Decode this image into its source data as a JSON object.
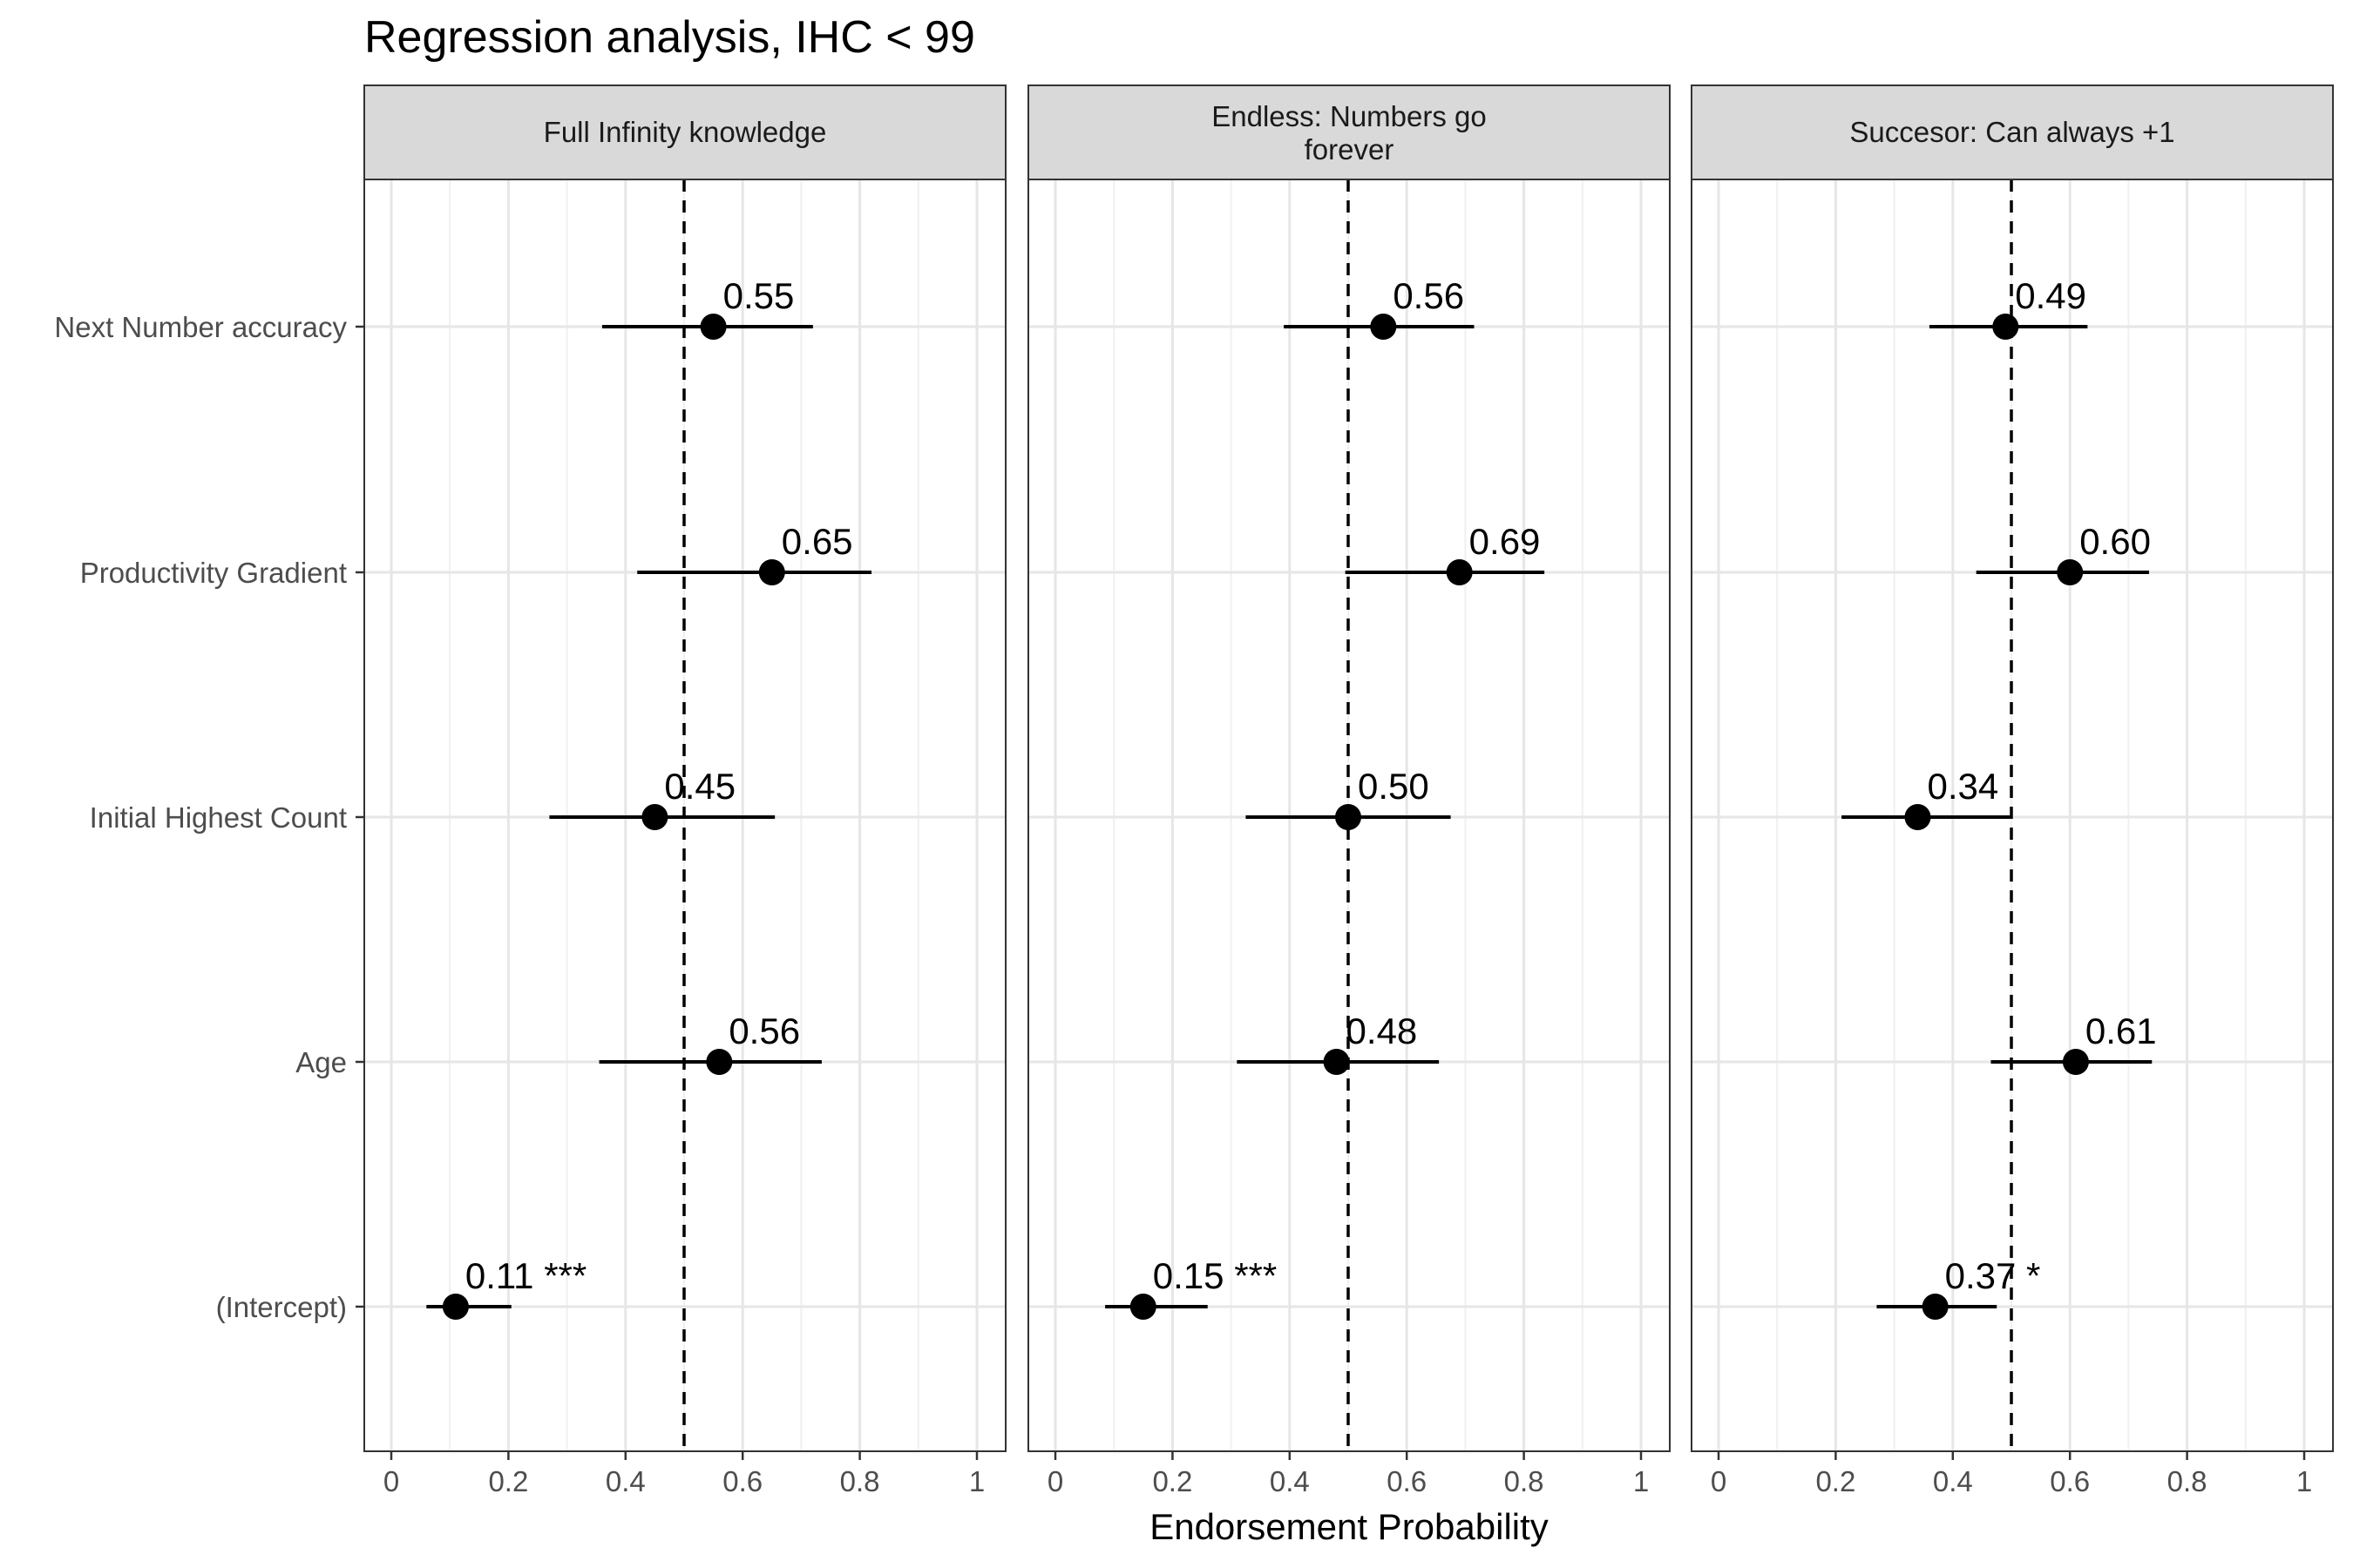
{
  "chart_data": {
    "type": "scatter",
    "subtype": "coefficient-plot-faceted",
    "title": "Regression analysis, IHC < 99",
    "xlabel": "Endorsement Probability",
    "ylabel": "",
    "xlim": [
      -0.05,
      1.05
    ],
    "x_ticks": [
      0,
      0.2,
      0.4,
      0.6,
      0.8,
      1
    ],
    "x_tick_labels": [
      "0",
      "0.2",
      "0.4",
      "0.6",
      "0.8",
      "1"
    ],
    "reference_line": 0.5,
    "grid": true,
    "categories": [
      "Next Number accuracy",
      "Productivity Gradient",
      "Initial Highest Count",
      "Age",
      "(Intercept)"
    ],
    "facets": [
      {
        "label_lines": [
          "Full Infinity knowledge"
        ],
        "estimates": [
          0.55,
          0.65,
          0.45,
          0.56,
          0.11
        ],
        "ci_low": [
          0.36,
          0.42,
          0.27,
          0.355,
          0.06
        ],
        "ci_high": [
          0.72,
          0.82,
          0.655,
          0.735,
          0.205
        ],
        "labels": [
          "0.55",
          "0.65",
          "0.45",
          "0.56",
          "0.11 ***"
        ]
      },
      {
        "label_lines": [
          "Endless: Numbers go",
          "forever"
        ],
        "estimates": [
          0.56,
          0.69,
          0.5,
          0.48,
          0.15
        ],
        "ci_low": [
          0.39,
          0.495,
          0.325,
          0.31,
          0.085
        ],
        "ci_high": [
          0.715,
          0.835,
          0.675,
          0.655,
          0.26
        ],
        "labels": [
          "0.56",
          "0.69",
          "0.50",
          "0.48",
          "0.15 ***"
        ]
      },
      {
        "label_lines": [
          "Succesor: Can always +1"
        ],
        "estimates": [
          0.49,
          0.6,
          0.34,
          0.61,
          0.37
        ],
        "ci_low": [
          0.36,
          0.44,
          0.21,
          0.465,
          0.27
        ],
        "ci_high": [
          0.63,
          0.735,
          0.5,
          0.74,
          0.475
        ],
        "labels": [
          "0.49",
          "0.60",
          "0.34",
          "0.61",
          "0.37 *"
        ]
      }
    ]
  }
}
